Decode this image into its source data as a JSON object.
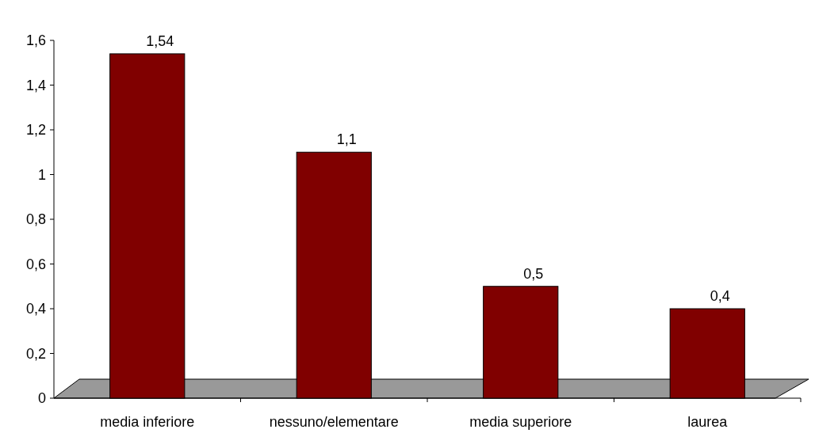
{
  "chart_data": {
    "type": "bar",
    "categories": [
      "media inferiore",
      "nessuno/elementare",
      "media superiore",
      "laurea"
    ],
    "values": [
      1.54,
      1.1,
      0.5,
      0.4
    ],
    "value_labels": [
      "1,54",
      "1,1",
      "0,5",
      "0,4"
    ],
    "color": "#800000",
    "ylim": [
      0,
      1.6
    ],
    "yticks": [
      0,
      {
        "value": 0.2,
        "label": "0,2"
      },
      {
        "value": 0.4,
        "label": "0,4"
      },
      {
        "value": 0.6,
        "label": "0,6"
      },
      {
        "value": 0.8,
        "label": "0,8"
      },
      1,
      {
        "value": 1.2,
        "label": "1,2"
      },
      {
        "value": 1.4,
        "label": "1,4"
      },
      {
        "value": 1.6,
        "label": "1,6"
      }
    ],
    "grid": false
  }
}
